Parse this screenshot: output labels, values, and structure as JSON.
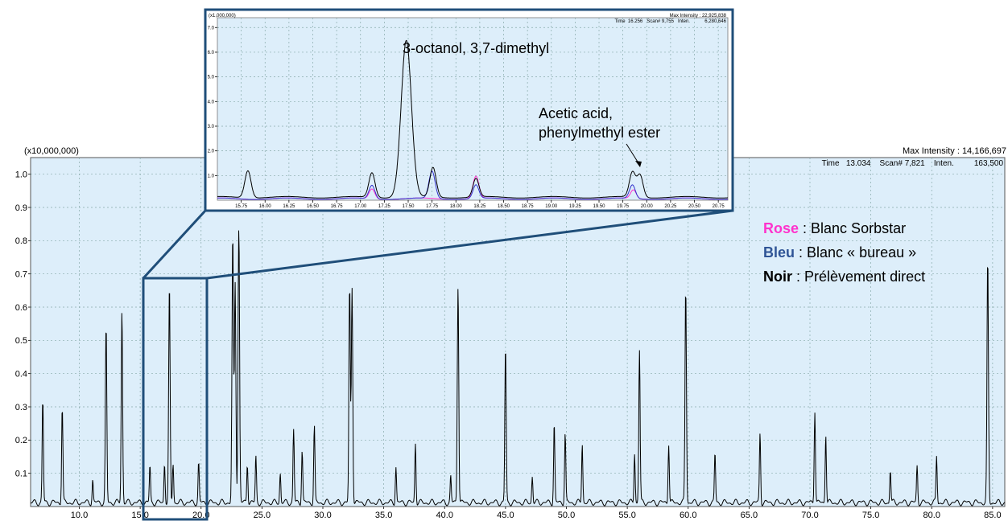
{
  "legend": {
    "items": [
      {
        "key": "Rose",
        "sep": " : ",
        "label": "Blanc Sorbstar",
        "color": "#ff33cc"
      },
      {
        "key": "Bleu",
        "sep": " : ",
        "label": "Blanc « bureau »",
        "color": "#2f5496"
      },
      {
        "key": "Noir",
        "sep": " : ",
        "label": "Prélèvement direct",
        "color": "#000000"
      }
    ]
  },
  "chart_data": [
    {
      "type": "line",
      "multiplier_label": "(x10,000,000)",
      "header_right": "Max Intensity : 14,166,697",
      "info_line": "Time   13.034    Scan# 7,821    Inten.         163,500",
      "xlim": [
        6.0,
        86.0
      ],
      "ylim": [
        0.0,
        1.05
      ],
      "x_ticks": [
        "10.0",
        "15.0",
        "20.0",
        "25.0",
        "30.0",
        "35.0",
        "40.0",
        "45.0",
        "50.0",
        "55.0",
        "60.0",
        "65.0",
        "70.0",
        "75.0",
        "80.0",
        "85.0"
      ],
      "y_ticks": [
        "0.1",
        "0.2",
        "0.3",
        "0.4",
        "0.5",
        "0.6",
        "0.7",
        "0.8",
        "0.9",
        "1.0"
      ],
      "grid": true,
      "background": "#ddeefa",
      "series": [
        {
          "color": "#000000",
          "peaks": [
            [
              7.0,
              0.31
            ],
            [
              8.6,
              0.29
            ],
            [
              11.1,
              0.07
            ],
            [
              12.2,
              0.53
            ],
            [
              13.5,
              0.58
            ],
            [
              15.8,
              0.11
            ],
            [
              17.0,
              0.12
            ],
            [
              17.4,
              0.65
            ],
            [
              17.7,
              0.12
            ],
            [
              19.8,
              0.12
            ],
            [
              22.6,
              0.8
            ],
            [
              22.8,
              0.66
            ],
            [
              23.1,
              0.83
            ],
            [
              23.8,
              0.12
            ],
            [
              24.5,
              0.14
            ],
            [
              26.5,
              0.09
            ],
            [
              27.6,
              0.22
            ],
            [
              28.3,
              0.16
            ],
            [
              29.3,
              0.23
            ],
            [
              32.2,
              0.65
            ],
            [
              32.4,
              0.65
            ],
            [
              36.0,
              0.11
            ],
            [
              37.6,
              0.18
            ],
            [
              40.5,
              0.08
            ],
            [
              41.1,
              0.66
            ],
            [
              45.0,
              0.47
            ],
            [
              47.2,
              0.08
            ],
            [
              49.0,
              0.24
            ],
            [
              49.9,
              0.21
            ],
            [
              51.3,
              0.18
            ],
            [
              55.6,
              0.15
            ],
            [
              56.0,
              0.46
            ],
            [
              58.4,
              0.18
            ],
            [
              59.8,
              0.65
            ],
            [
              62.2,
              0.15
            ],
            [
              65.9,
              0.21
            ],
            [
              70.4,
              0.28
            ],
            [
              71.3,
              0.21
            ],
            [
              76.6,
              0.1
            ],
            [
              78.8,
              0.11
            ],
            [
              80.4,
              0.14
            ],
            [
              84.6,
              0.73
            ]
          ]
        }
      ]
    },
    {
      "type": "line",
      "multiplier_label": "(x1,000,000)",
      "header_right": "Max Intensity : 22,925,838",
      "info_line": "Time  16.256   Scan# 9,755   Inten.           6,280,646",
      "xlim": [
        15.5,
        20.85
      ],
      "ylim": [
        0.0,
        7.4
      ],
      "x_ticks": [
        "15.75",
        "16.00",
        "16.25",
        "16.50",
        "16.75",
        "17.00",
        "17.25",
        "17.50",
        "17.75",
        "18.00",
        "18.25",
        "18.50",
        "18.75",
        "19.00",
        "19.25",
        "19.50",
        "19.75",
        "20.00",
        "20.25",
        "20.50",
        "20.75"
      ],
      "y_ticks": [
        "1.0",
        "2.0",
        "3.0",
        "4.0",
        "5.0",
        "6.0",
        "7.0"
      ],
      "grid": true,
      "annotations": [
        {
          "text": "3-octanol, 3,7-dimethyl",
          "x": 17.48,
          "y": 6.35
        },
        {
          "text": "Acetic acid,",
          "x": 19.9,
          "y": 0.95
        },
        {
          "text": "phenylmethyl ester",
          "x": 19.9,
          "y": 0.95
        }
      ],
      "series": [
        {
          "color": "#000000",
          "peaks": [
            [
              15.82,
              1.1
            ],
            [
              17.12,
              1.0
            ],
            [
              17.48,
              6.35
            ],
            [
              17.76,
              1.2
            ],
            [
              18.21,
              0.75
            ],
            [
              19.85,
              1.0
            ],
            [
              19.93,
              0.9
            ]
          ]
        },
        {
          "color": "#3333cc",
          "peaks": [
            [
              17.12,
              0.55
            ],
            [
              17.75,
              1.1
            ],
            [
              18.21,
              0.55
            ],
            [
              19.85,
              0.55
            ]
          ]
        },
        {
          "color": "#ff33cc",
          "peaks": [
            [
              17.12,
              0.4
            ],
            [
              18.21,
              0.9
            ],
            [
              19.86,
              0.35
            ]
          ]
        }
      ],
      "zoom_region": {
        "from": 15.0,
        "to": 20.2
      }
    }
  ]
}
